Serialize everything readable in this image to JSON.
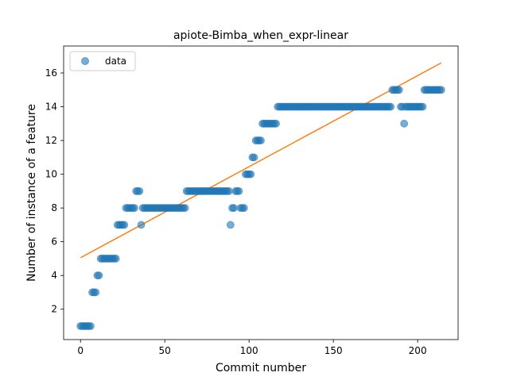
{
  "chart_data": {
    "type": "scatter",
    "title": "apiote-Bimba_when_expr-linear",
    "xlabel": "Commit number",
    "ylabel": "Number of instance of a feature",
    "xlim": [
      -10,
      224
    ],
    "ylim": [
      0.2,
      17.6
    ],
    "xticks": [
      0,
      50,
      100,
      150,
      200
    ],
    "yticks": [
      2,
      4,
      6,
      8,
      10,
      12,
      14,
      16
    ],
    "legend": {
      "position": "top-left",
      "entries": [
        "data"
      ]
    },
    "colors": {
      "data": "#1f77b4",
      "fit": "#ff7f0e"
    },
    "fit_line": {
      "x": [
        0,
        214
      ],
      "y": [
        5.05,
        16.6
      ]
    },
    "series": [
      {
        "name": "data",
        "points": [
          [
            0,
            1
          ],
          [
            1,
            1
          ],
          [
            2,
            1
          ],
          [
            3,
            1
          ],
          [
            4,
            1
          ],
          [
            5,
            1
          ],
          [
            6,
            1
          ],
          [
            7,
            3
          ],
          [
            8,
            3
          ],
          [
            9,
            3
          ],
          [
            10,
            4
          ],
          [
            11,
            4
          ],
          [
            12,
            5
          ],
          [
            13,
            5
          ],
          [
            14,
            5
          ],
          [
            15,
            5
          ],
          [
            16,
            5
          ],
          [
            17,
            5
          ],
          [
            18,
            5
          ],
          [
            19,
            5
          ],
          [
            20,
            5
          ],
          [
            21,
            5
          ],
          [
            22,
            7
          ],
          [
            23,
            7
          ],
          [
            24,
            7
          ],
          [
            25,
            7
          ],
          [
            26,
            7
          ],
          [
            27,
            8
          ],
          [
            28,
            8
          ],
          [
            29,
            8
          ],
          [
            30,
            8
          ],
          [
            31,
            8
          ],
          [
            32,
            8
          ],
          [
            33,
            9
          ],
          [
            34,
            9
          ],
          [
            35,
            9
          ],
          [
            36,
            7
          ],
          [
            37,
            8
          ],
          [
            38,
            8
          ],
          [
            39,
            8
          ],
          [
            40,
            8
          ],
          [
            41,
            8
          ],
          [
            42,
            8
          ],
          [
            43,
            8
          ],
          [
            44,
            8
          ],
          [
            45,
            8
          ],
          [
            46,
            8
          ],
          [
            47,
            8
          ],
          [
            48,
            8
          ],
          [
            49,
            8
          ],
          [
            50,
            8
          ],
          [
            51,
            8
          ],
          [
            52,
            8
          ],
          [
            53,
            8
          ],
          [
            54,
            8
          ],
          [
            55,
            8
          ],
          [
            56,
            8
          ],
          [
            57,
            8
          ],
          [
            58,
            8
          ],
          [
            59,
            8
          ],
          [
            60,
            8
          ],
          [
            61,
            8
          ],
          [
            62,
            8
          ],
          [
            63,
            9
          ],
          [
            64,
            9
          ],
          [
            65,
            9
          ],
          [
            66,
            9
          ],
          [
            67,
            9
          ],
          [
            68,
            9
          ],
          [
            69,
            9
          ],
          [
            70,
            9
          ],
          [
            71,
            9
          ],
          [
            72,
            9
          ],
          [
            73,
            9
          ],
          [
            74,
            9
          ],
          [
            75,
            9
          ],
          [
            76,
            9
          ],
          [
            77,
            9
          ],
          [
            78,
            9
          ],
          [
            79,
            9
          ],
          [
            80,
            9
          ],
          [
            81,
            9
          ],
          [
            82,
            9
          ],
          [
            83,
            9
          ],
          [
            84,
            9
          ],
          [
            85,
            9
          ],
          [
            86,
            9
          ],
          [
            87,
            9
          ],
          [
            88,
            9
          ],
          [
            89,
            7
          ],
          [
            90,
            8
          ],
          [
            91,
            8
          ],
          [
            92,
            9
          ],
          [
            93,
            9
          ],
          [
            94,
            9
          ],
          [
            95,
            8
          ],
          [
            96,
            8
          ],
          [
            97,
            8
          ],
          [
            98,
            10
          ],
          [
            99,
            10
          ],
          [
            100,
            10
          ],
          [
            101,
            10
          ],
          [
            102,
            11
          ],
          [
            103,
            11
          ],
          [
            104,
            12
          ],
          [
            105,
            12
          ],
          [
            106,
            12
          ],
          [
            107,
            12
          ],
          [
            108,
            13
          ],
          [
            109,
            13
          ],
          [
            110,
            13
          ],
          [
            111,
            13
          ],
          [
            112,
            13
          ],
          [
            113,
            13
          ],
          [
            114,
            13
          ],
          [
            115,
            13
          ],
          [
            116,
            13
          ],
          [
            117,
            14
          ],
          [
            118,
            14
          ],
          [
            119,
            14
          ],
          [
            120,
            14
          ],
          [
            121,
            14
          ],
          [
            122,
            14
          ],
          [
            123,
            14
          ],
          [
            124,
            14
          ],
          [
            125,
            14
          ],
          [
            126,
            14
          ],
          [
            127,
            14
          ],
          [
            128,
            14
          ],
          [
            129,
            14
          ],
          [
            130,
            14
          ],
          [
            131,
            14
          ],
          [
            132,
            14
          ],
          [
            133,
            14
          ],
          [
            134,
            14
          ],
          [
            135,
            14
          ],
          [
            136,
            14
          ],
          [
            137,
            14
          ],
          [
            138,
            14
          ],
          [
            139,
            14
          ],
          [
            140,
            14
          ],
          [
            141,
            14
          ],
          [
            142,
            14
          ],
          [
            143,
            14
          ],
          [
            144,
            14
          ],
          [
            145,
            14
          ],
          [
            146,
            14
          ],
          [
            147,
            14
          ],
          [
            148,
            14
          ],
          [
            149,
            14
          ],
          [
            150,
            14
          ],
          [
            151,
            14
          ],
          [
            152,
            14
          ],
          [
            153,
            14
          ],
          [
            154,
            14
          ],
          [
            155,
            14
          ],
          [
            156,
            14
          ],
          [
            157,
            14
          ],
          [
            158,
            14
          ],
          [
            159,
            14
          ],
          [
            160,
            14
          ],
          [
            161,
            14
          ],
          [
            162,
            14
          ],
          [
            163,
            14
          ],
          [
            164,
            14
          ],
          [
            165,
            14
          ],
          [
            166,
            14
          ],
          [
            167,
            14
          ],
          [
            168,
            14
          ],
          [
            169,
            14
          ],
          [
            170,
            14
          ],
          [
            171,
            14
          ],
          [
            172,
            14
          ],
          [
            173,
            14
          ],
          [
            174,
            14
          ],
          [
            175,
            14
          ],
          [
            176,
            14
          ],
          [
            177,
            14
          ],
          [
            178,
            14
          ],
          [
            179,
            14
          ],
          [
            180,
            14
          ],
          [
            181,
            14
          ],
          [
            182,
            14
          ],
          [
            183,
            14
          ],
          [
            184,
            14
          ],
          [
            185,
            15
          ],
          [
            186,
            15
          ],
          [
            187,
            15
          ],
          [
            188,
            15
          ],
          [
            189,
            15
          ],
          [
            190,
            14
          ],
          [
            191,
            14
          ],
          [
            192,
            13
          ],
          [
            193,
            14
          ],
          [
            194,
            14
          ],
          [
            195,
            14
          ],
          [
            196,
            14
          ],
          [
            197,
            14
          ],
          [
            198,
            14
          ],
          [
            199,
            14
          ],
          [
            200,
            14
          ],
          [
            201,
            14
          ],
          [
            202,
            14
          ],
          [
            203,
            14
          ],
          [
            204,
            15
          ],
          [
            205,
            15
          ],
          [
            206,
            15
          ],
          [
            207,
            15
          ],
          [
            208,
            15
          ],
          [
            209,
            15
          ],
          [
            210,
            15
          ],
          [
            211,
            15
          ],
          [
            212,
            15
          ],
          [
            213,
            15
          ],
          [
            214,
            15
          ]
        ]
      }
    ]
  }
}
